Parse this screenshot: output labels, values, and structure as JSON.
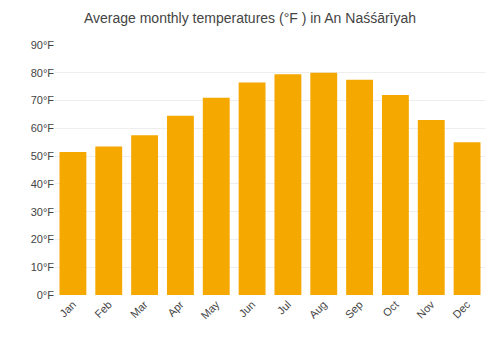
{
  "chart_data": {
    "type": "bar",
    "title": "Average monthly temperatures (°F ) in An Naśśārīyah",
    "categories": [
      "Jan",
      "Feb",
      "Mar",
      "Apr",
      "May",
      "Jun",
      "Jul",
      "Aug",
      "Sep",
      "Oct",
      "Nov",
      "Dec"
    ],
    "values": [
      51.5,
      53.5,
      57.5,
      64.5,
      71.0,
      76.5,
      79.5,
      80.0,
      77.5,
      72.0,
      63.0,
      55.0
    ],
    "color": "#F5A800",
    "ylim": [
      0,
      90
    ],
    "yticks": [
      {
        "value": 0,
        "label": "0°F"
      },
      {
        "value": 10,
        "label": "10°F"
      },
      {
        "value": 20,
        "label": "20°F"
      },
      {
        "value": 30,
        "label": "30°F"
      },
      {
        "value": 40,
        "label": "40°F"
      },
      {
        "value": 50,
        "label": "50°F"
      },
      {
        "value": 60,
        "label": "60°F"
      },
      {
        "value": 70,
        "label": "70°F"
      },
      {
        "value": 80,
        "label": "80°F"
      },
      {
        "value": 90,
        "label": "90°F"
      }
    ],
    "grid": true
  }
}
